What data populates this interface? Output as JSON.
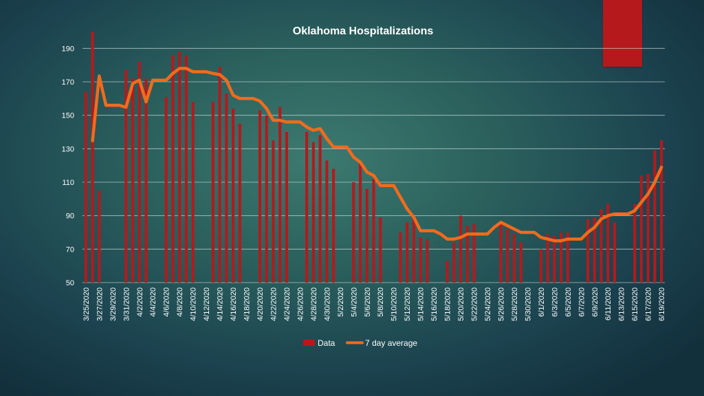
{
  "slide": {
    "accent_color": "#b5191c"
  },
  "chart_data": {
    "type": "bar",
    "title": "Oklahoma Hospitalizations",
    "xlabel": "",
    "ylabel": "",
    "ylim": [
      50,
      200
    ],
    "yticks": [
      50,
      70,
      90,
      110,
      130,
      150,
      170,
      190
    ],
    "grid": true,
    "legend_position": "bottom",
    "colors": {
      "bar": "#b5191c",
      "line": "#f26b1d",
      "text": "#ffffff",
      "grid": "#cfe0de"
    },
    "categories": [
      "3/25/2020",
      "3/26/2020",
      "3/27/2020",
      "3/28/2020",
      "3/29/2020",
      "3/30/2020",
      "3/31/2020",
      "4/1/2020",
      "4/2/2020",
      "4/3/2020",
      "4/4/2020",
      "4/5/2020",
      "4/6/2020",
      "4/7/2020",
      "4/8/2020",
      "4/9/2020",
      "4/10/2020",
      "4/11/2020",
      "4/12/2020",
      "4/13/2020",
      "4/14/2020",
      "4/15/2020",
      "4/16/2020",
      "4/17/2020",
      "4/18/2020",
      "4/19/2020",
      "4/20/2020",
      "4/21/2020",
      "4/22/2020",
      "4/23/2020",
      "4/24/2020",
      "4/25/2020",
      "4/26/2020",
      "4/27/2020",
      "4/28/2020",
      "4/29/2020",
      "4/30/2020",
      "5/1/2020",
      "5/2/2020",
      "5/3/2020",
      "5/4/2020",
      "5/5/2020",
      "5/6/2020",
      "5/7/2020",
      "5/8/2020",
      "5/9/2020",
      "5/10/2020",
      "5/11/2020",
      "5/12/2020",
      "5/13/2020",
      "5/14/2020",
      "5/15/2020",
      "5/16/2020",
      "5/17/2020",
      "5/18/2020",
      "5/19/2020",
      "5/20/2020",
      "5/21/2020",
      "5/22/2020",
      "5/23/2020",
      "5/24/2020",
      "5/25/2020",
      "5/26/2020",
      "5/27/2020",
      "5/28/2020",
      "5/29/2020",
      "5/30/2020",
      "5/31/2020",
      "6/1/2020",
      "6/2/2020",
      "6/3/2020",
      "6/4/2020",
      "6/5/2020",
      "6/6/2020",
      "6/7/2020",
      "6/8/2020",
      "6/9/2020",
      "6/10/2020",
      "6/11/2020",
      "6/12/2020",
      "6/13/2020",
      "6/14/2020",
      "6/15/2020",
      "6/16/2020",
      "6/17/2020",
      "6/18/2020",
      "6/19/2020"
    ],
    "tick_labels": [
      "3/25/2020",
      "3/27/2020",
      "3/29/2020",
      "3/31/2020",
      "4/2/2020",
      "4/4/2020",
      "4/6/2020",
      "4/8/2020",
      "4/10/2020",
      "4/12/2020",
      "4/14/2020",
      "4/16/2020",
      "4/18/2020",
      "4/20/2020",
      "4/22/2020",
      "4/24/2020",
      "4/26/2020",
      "4/28/2020",
      "4/30/2020",
      "5/2/2020",
      "5/4/2020",
      "5/6/2020",
      "5/8/2020",
      "5/10/2020",
      "5/12/2020",
      "5/14/2020",
      "5/16/2020",
      "5/18/2020",
      "5/20/2020",
      "5/22/2020",
      "5/24/2020",
      "5/26/2020",
      "5/28/2020",
      "5/30/2020",
      "6/1/2020",
      "6/3/2020",
      "6/5/2020",
      "6/7/2020",
      "6/9/2020",
      "6/11/2020",
      "6/13/2020",
      "6/15/2020",
      "6/17/2020",
      "6/19/2020"
    ],
    "series": [
      {
        "name": "Data",
        "type": "bar",
        "values": [
          164,
          200,
          105,
          null,
          null,
          null,
          177,
          172,
          182,
          172,
          null,
          null,
          161,
          186,
          188,
          186,
          158,
          null,
          null,
          158,
          179,
          163,
          154,
          145,
          null,
          null,
          153,
          150,
          135,
          155,
          140,
          null,
          null,
          140,
          134,
          138,
          123,
          118,
          null,
          null,
          110,
          121,
          106,
          112,
          89,
          null,
          null,
          80,
          86,
          89,
          77,
          76,
          null,
          null,
          63,
          74,
          90,
          84,
          85,
          null,
          null,
          null,
          86,
          82,
          79,
          74,
          null,
          null,
          70,
          79,
          78,
          80,
          80,
          null,
          null,
          88,
          89,
          94,
          97,
          86,
          null,
          null,
          97,
          114,
          115,
          129,
          135
        ]
      },
      {
        "name": "7 day average",
        "type": "line",
        "values": [
          null,
          134.8,
          173.5,
          156,
          156,
          156,
          154.8,
          169,
          171,
          158,
          171,
          171,
          171,
          175,
          178,
          178,
          176,
          176,
          176,
          175,
          174.3,
          171,
          162,
          160,
          160,
          160,
          158.5,
          154,
          147,
          147,
          146,
          146,
          146,
          143,
          141,
          142,
          136,
          131,
          131,
          131,
          125,
          122,
          116,
          114,
          108,
          108,
          108,
          101,
          94,
          89,
          81,
          81,
          81,
          79,
          76,
          76,
          77,
          79,
          79,
          79,
          79,
          83,
          86,
          84,
          82,
          80,
          80,
          80,
          77,
          76,
          75,
          75,
          76,
          76,
          76,
          80,
          83,
          88,
          90,
          91,
          91,
          91,
          93,
          98,
          103,
          110,
          119
        ]
      }
    ]
  }
}
